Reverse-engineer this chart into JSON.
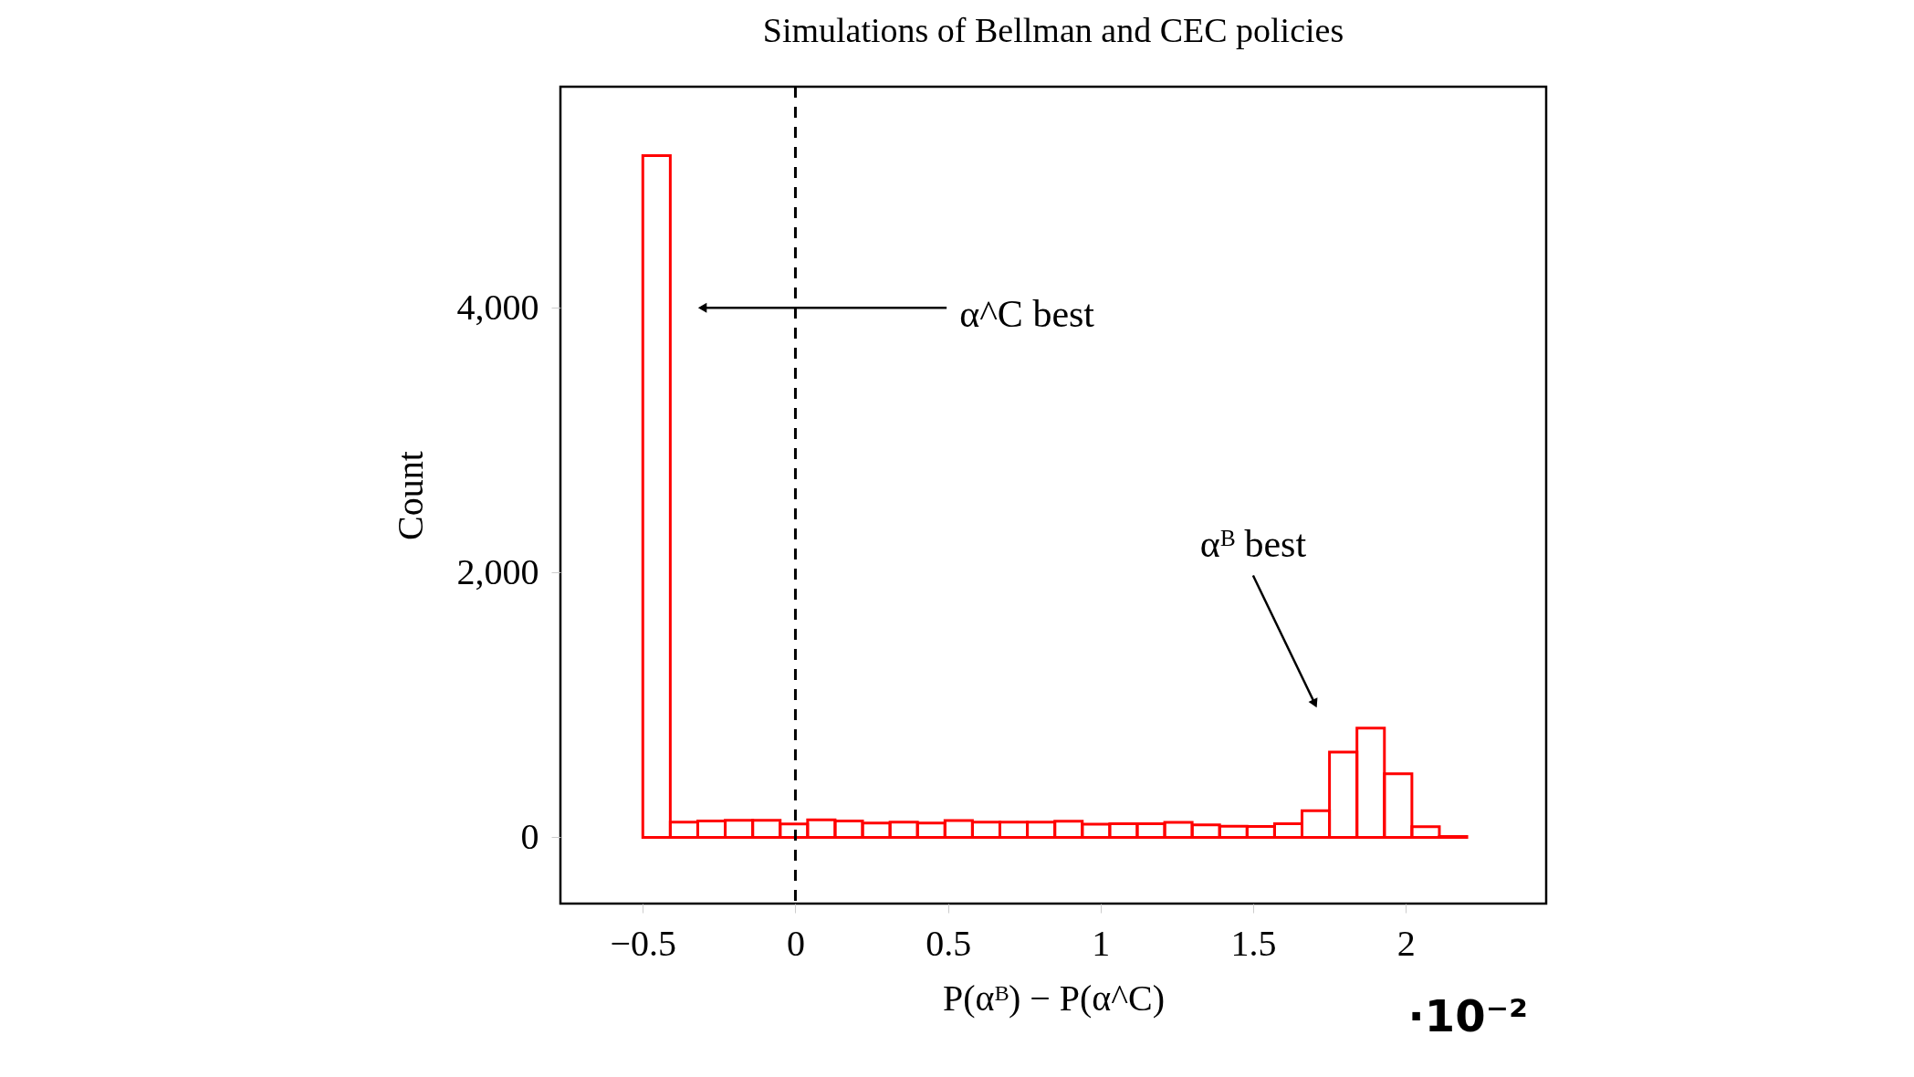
{
  "chart_data": {
    "type": "histogram",
    "title": "Simulations of Bellman and CEC policies",
    "xlabel": "P(αᴮ) − P(α^C)",
    "ylabel": "Count",
    "bins": [
      -0.5,
      -0.41,
      -0.32,
      -0.23,
      -0.14,
      -0.05,
      0.04,
      0.13,
      0.22,
      0.31,
      0.4,
      0.49,
      0.58,
      0.67,
      0.76,
      0.85,
      0.94,
      1.03,
      1.12,
      1.21,
      1.3,
      1.39,
      1.48,
      1.57,
      1.66,
      1.75,
      1.84,
      1.93,
      2.02,
      2.11,
      2.2
    ],
    "values": [
      5150,
      115,
      124,
      129,
      129,
      101,
      133,
      124,
      108,
      115,
      108,
      127,
      115,
      115,
      115,
      122,
      99,
      104,
      104,
      113,
      94,
      85,
      83,
      104,
      202,
      644,
      826,
      481,
      81,
      7
    ],
    "color": "#ff0000",
    "xlim": [
      -0.77,
      2.46
    ],
    "ylim": [
      -500,
      5670
    ],
    "xticks": [
      {
        "value": -0.5,
        "label": "−0.5"
      },
      0,
      0.5,
      1,
      1.5,
      2
    ],
    "yticks": [
      0,
      {
        "value": 2000,
        "label": "2,000"
      },
      {
        "value": 4000,
        "label": "4,000"
      }
    ],
    "grid": false,
    "ref_lines": [
      {
        "axis": "x",
        "value": 0,
        "color": "#000000",
        "line_style": "dashed"
      }
    ],
    "annotations": [
      {
        "text": "α^C best",
        "x": -0.3,
        "y": 4000
      },
      {
        "text": "αᴮ best",
        "x": 1.7,
        "y": 1020
      },
      "·10⁻²"
    ]
  }
}
